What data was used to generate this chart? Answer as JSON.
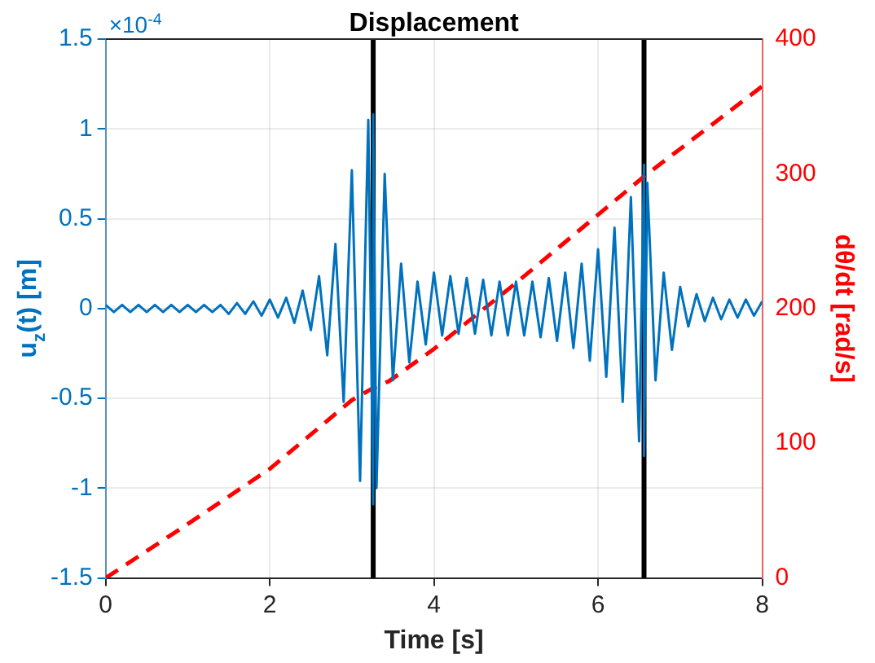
{
  "chart_data": {
    "type": "line",
    "title": "Displacement",
    "xlabel": "Time [s]",
    "ylabel": "u$_{z}$(t) [m]",
    "y2label": "dθ/dt [rad/s]",
    "annotations": [
      "×10$^{-4}$"
    ],
    "xlim": [
      0,
      8
    ],
    "xticks": [
      0,
      2,
      4,
      6,
      8
    ],
    "ylim": [
      -1.5,
      1.5
    ],
    "yticks": [
      -1.5,
      -1,
      -0.5,
      0,
      0.5,
      1,
      1.5
    ],
    "y2lim": [
      0,
      400
    ],
    "y2ticks": [
      0,
      100,
      200,
      300,
      400
    ],
    "grid": true,
    "legend": false,
    "marker": "none",
    "ref_lines": [
      {
        "axis": "x",
        "value": 3.26,
        "color": "#000000"
      },
      {
        "axis": "x",
        "value": 6.56,
        "color": "#000000"
      }
    ],
    "series": [
      {
        "color": "#0072bd",
        "line_style": "solid",
        "x": [
          0,
          0.1,
          0.2,
          0.3,
          0.4,
          0.5,
          0.6,
          0.7,
          0.8,
          0.9,
          1.0,
          1.1,
          1.2,
          1.3,
          1.4,
          1.5,
          1.6,
          1.7,
          1.8,
          1.9,
          2.0,
          2.1,
          2.2,
          2.3,
          2.4,
          2.5,
          2.6,
          2.7,
          2.8,
          2.9,
          3.0,
          3.1,
          3.2,
          3.26,
          3.26,
          3.3,
          3.4,
          3.5,
          3.6,
          3.7,
          3.8,
          3.9,
          4.0,
          4.1,
          4.2,
          4.3,
          4.4,
          4.5,
          4.6,
          4.7,
          4.8,
          4.9,
          5.0,
          5.1,
          5.2,
          5.3,
          5.4,
          5.5,
          5.6,
          5.7,
          5.8,
          5.9,
          6.0,
          6.1,
          6.2,
          6.3,
          6.4,
          6.5,
          6.56,
          6.56,
          6.6,
          6.7,
          6.8,
          6.9,
          7.0,
          7.1,
          7.2,
          7.3,
          7.4,
          7.5,
          7.6,
          7.7,
          7.8,
          7.9,
          8.0
        ],
        "values": [
          0.02,
          -0.02,
          0.02,
          -0.02,
          0.02,
          -0.02,
          0.02,
          -0.02,
          0.02,
          -0.02,
          0.02,
          -0.02,
          0.02,
          -0.02,
          0.02,
          -0.03,
          0.03,
          -0.03,
          0.04,
          -0.04,
          0.05,
          -0.05,
          0.06,
          -0.08,
          0.1,
          -0.12,
          0.18,
          -0.26,
          0.36,
          -0.52,
          0.77,
          -0.96,
          1.05,
          -1.09,
          1.08,
          -1.0,
          0.75,
          -0.4,
          0.25,
          -0.3,
          0.15,
          -0.2,
          0.2,
          -0.15,
          0.18,
          -0.14,
          0.17,
          -0.14,
          0.16,
          -0.15,
          0.15,
          -0.15,
          0.15,
          -0.15,
          0.15,
          -0.16,
          0.17,
          -0.18,
          0.2,
          -0.22,
          0.25,
          -0.29,
          0.33,
          -0.38,
          0.45,
          -0.52,
          0.62,
          -0.74,
          0.8,
          -0.82,
          0.7,
          -0.4,
          0.2,
          -0.23,
          0.12,
          -0.1,
          0.08,
          -0.07,
          0.06,
          -0.06,
          0.05,
          -0.05,
          0.05,
          -0.04,
          0.04
        ]
      },
      {
        "color": "#ff0000",
        "axis": "y2",
        "line_style": "dashed",
        "x": [
          0,
          1,
          2,
          3,
          3.26,
          3.45,
          4,
          4.94,
          6.56,
          8
        ],
        "values": [
          0,
          40,
          81,
          132,
          141,
          146,
          170,
          216,
          298,
          365
        ]
      }
    ]
  }
}
